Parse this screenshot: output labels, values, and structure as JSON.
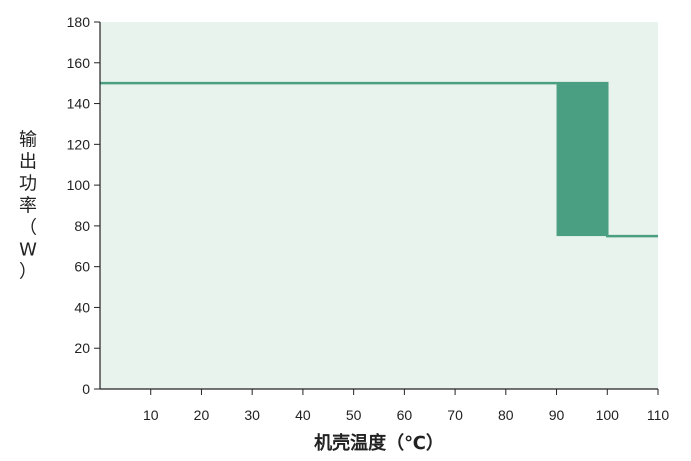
{
  "chart_data": {
    "type": "line",
    "xlabel": "机壳温度（℃）",
    "ylabel": "输出功率（W）",
    "xlim": [
      0,
      110
    ],
    "ylim": [
      0,
      180
    ],
    "x_ticks": [
      10,
      20,
      30,
      40,
      50,
      60,
      70,
      80,
      90,
      100,
      110
    ],
    "y_ticks": [
      0,
      20,
      40,
      60,
      80,
      100,
      120,
      140,
      160,
      180
    ],
    "grid": false,
    "legend": "none",
    "series": [
      {
        "points": [
          [
            0,
            150
          ],
          [
            90,
            150
          ],
          [
            100,
            150
          ],
          [
            100,
            75
          ],
          [
            110,
            75
          ]
        ]
      }
    ],
    "band": {
      "x_start": 90,
      "x_end": 100,
      "y_low": 75,
      "y_high": 150
    },
    "colors": {
      "plot_bg": "#e8f3ee",
      "line": "#4a9e82",
      "band": "#4a9e82",
      "axis": "#222222"
    }
  }
}
